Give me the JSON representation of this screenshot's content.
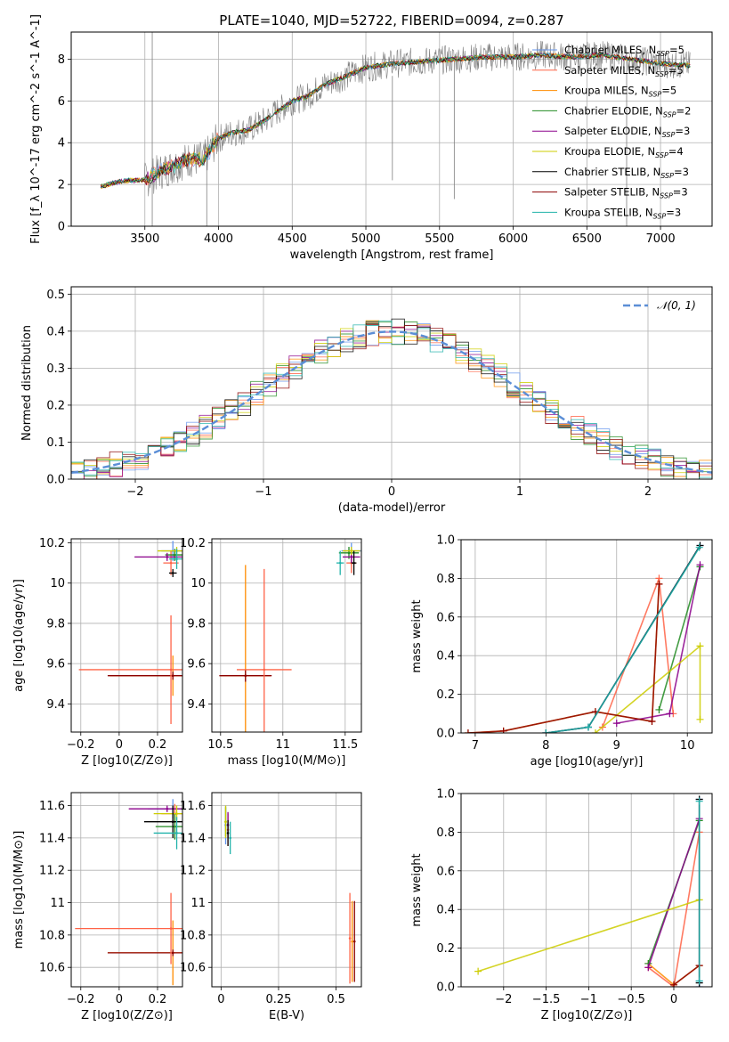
{
  "title": "PLATE=1040, MJD=52722, FIBERID=0094, z=0.287",
  "model_names": [
    {
      "name": "Chabrier MILES",
      "nssp": "5"
    },
    {
      "name": "Salpeter MILES",
      "nssp": "5"
    },
    {
      "name": "Kroupa MILES",
      "nssp": "5"
    },
    {
      "name": "Chabrier ELODIE",
      "nssp": "2"
    },
    {
      "name": "Salpeter ELODIE",
      "nssp": "3"
    },
    {
      "name": "Kroupa ELODIE",
      "nssp": "4"
    },
    {
      "name": "Chabrier STELIB",
      "nssp": "3"
    },
    {
      "name": "Salpeter STELIB",
      "nssp": "3"
    },
    {
      "name": "Kroupa STELIB",
      "nssp": "3"
    }
  ],
  "colors": {
    "models": [
      "#6495ed",
      "#ff6347",
      "#ff8c00",
      "#228b22",
      "#8b008b",
      "#cdcd00",
      "#000000",
      "#8b0000",
      "#20b2aa"
    ],
    "data_spectrum": "#808080",
    "gaussian": "#5b8ed6",
    "grid": "#b0b0b0"
  },
  "chart_data": [
    {
      "id": "spectrum",
      "type": "line",
      "title": "PLATE=1040, MJD=52722, FIBERID=0094, z=0.287",
      "xlabel": "wavelength [Angstrom, rest frame]",
      "ylabel": "Flux [f_λ 10^-17 erg cm^-2 s^-1 A^-1]",
      "xlim": [
        3000,
        7350
      ],
      "ylim": [
        0,
        9.3
      ],
      "xticks": [
        3500,
        4000,
        4500,
        5000,
        5500,
        6000,
        6500,
        7000
      ],
      "yticks": [
        0,
        2,
        4,
        6,
        8
      ],
      "legend_position": "top-right",
      "continuum_x": [
        3200,
        3300,
        3400,
        3500,
        3600,
        3700,
        3800,
        3900,
        4000,
        4100,
        4200,
        4300,
        4400,
        4500,
        4600,
        4700,
        4800,
        4900,
        5000,
        5200,
        5400,
        5600,
        5800,
        6000,
        6200,
        6400,
        6600,
        6800,
        7000,
        7200
      ],
      "continuum_y": [
        1.9,
        2.1,
        2.2,
        2.2,
        2.6,
        2.9,
        3.2,
        3.2,
        4.2,
        4.5,
        4.6,
        5.0,
        5.5,
        6.0,
        6.2,
        6.7,
        7.0,
        7.3,
        7.6,
        7.8,
        7.9,
        8.0,
        8.1,
        8.1,
        8.2,
        8.1,
        8.2,
        8.0,
        7.8,
        7.7
      ]
    },
    {
      "id": "residuals",
      "type": "histogram",
      "xlabel": "(data-model)/error",
      "ylabel": "Normed distribution",
      "xlim": [
        -2.5,
        2.5
      ],
      "ylim": [
        0,
        0.52
      ],
      "xticks": [
        -2,
        -1,
        0,
        1,
        2
      ],
      "yticks": [
        0.0,
        0.1,
        0.2,
        0.3,
        0.4,
        0.5
      ],
      "legend": "𝒩(0, 1)",
      "legend_position": "top-right",
      "bin_width": 0.1
    },
    {
      "id": "age-vs-Z",
      "type": "scatter",
      "xlabel": "Z [log10(Z/Z⊙)]",
      "ylabel": "age [log10(age/yr)]",
      "xlim": [
        -0.25,
        0.33
      ],
      "ylim": [
        9.26,
        10.22
      ],
      "xticks": [
        -0.2,
        0.0,
        0.2
      ],
      "yticks": [
        9.4,
        9.6,
        9.8,
        10.0,
        10.2
      ],
      "points": [
        {
          "model": 0,
          "x": 0.28,
          "y": 10.16,
          "xerr": 0.06,
          "yerr": 0.05
        },
        {
          "model": 1,
          "x": 0.27,
          "y": 10.1,
          "xerr": 0.04,
          "yerr": 0.06
        },
        {
          "model": 2,
          "x": 0.28,
          "y": 9.54,
          "xerr": 0.33,
          "yerr": 0.1
        },
        {
          "model": 3,
          "x": 0.29,
          "y": 10.14,
          "xerr": 0.05,
          "yerr": 0.03
        },
        {
          "model": 4,
          "x": 0.25,
          "y": 10.13,
          "xerr": 0.17,
          "yerr": 0.02
        },
        {
          "model": 5,
          "x": 0.3,
          "y": 10.16,
          "xerr": 0.1,
          "yerr": 0.02
        },
        {
          "model": 6,
          "x": 0.28,
          "y": 10.05,
          "xerr": 0.02,
          "yerr": 0.02
        },
        {
          "model": 7,
          "x": 0.28,
          "y": 9.54,
          "xerr": 0.34,
          "yerr": 0.02
        },
        {
          "model": 8,
          "x": 0.3,
          "y": 10.12,
          "xerr": 0.04,
          "yerr": 0.05
        },
        {
          "model": 1,
          "x": 0.27,
          "y": 9.57,
          "xerr": 0.48,
          "yerr": 0.27
        }
      ]
    },
    {
      "id": "age-vs-mass",
      "type": "scatter",
      "xlabel": "mass [log10(M/M⊙)]",
      "ylabel": "",
      "xlim": [
        10.43,
        11.63
      ],
      "ylim": [
        9.26,
        10.22
      ],
      "xticks": [
        10.5,
        11.0,
        11.5
      ],
      "yticks": [
        9.4,
        9.6,
        9.8,
        10.0,
        10.2
      ],
      "points": [
        {
          "model": 0,
          "x": 11.55,
          "y": 10.16,
          "xerr": 0.08,
          "yerr": 0.04
        },
        {
          "model": 1,
          "x": 11.55,
          "y": 10.1,
          "xerr": 0.04,
          "yerr": 0.05
        },
        {
          "model": 2,
          "x": 10.7,
          "y": 9.54,
          "xerr": 0.2,
          "yerr": 0.55
        },
        {
          "model": 3,
          "x": 11.53,
          "y": 10.15,
          "xerr": 0.08,
          "yerr": 0.03
        },
        {
          "model": 4,
          "x": 11.55,
          "y": 10.13,
          "xerr": 0.07,
          "yerr": 0.03
        },
        {
          "model": 5,
          "x": 11.55,
          "y": 10.16,
          "xerr": 0.07,
          "yerr": 0.02
        },
        {
          "model": 6,
          "x": 11.57,
          "y": 10.1,
          "xerr": 0.02,
          "yerr": 0.06
        },
        {
          "model": 7,
          "x": 10.7,
          "y": 9.54,
          "xerr": 0.21,
          "yerr": 0.03
        },
        {
          "model": 8,
          "x": 11.46,
          "y": 10.1,
          "xerr": 0.03,
          "yerr": 0.06
        },
        {
          "model": 1,
          "x": 10.85,
          "y": 9.57,
          "xerr": 0.22,
          "yerr": 0.5
        }
      ]
    },
    {
      "id": "massweight-vs-age",
      "type": "line",
      "xlabel": "age [log10(age/yr)]",
      "ylabel": "mass weight",
      "xlim": [
        6.8,
        10.35
      ],
      "ylim": [
        0,
        1.0
      ],
      "xticks": [
        7,
        8,
        9,
        10
      ],
      "yticks": [
        0.0,
        0.2,
        0.4,
        0.6,
        0.8,
        1.0
      ],
      "series": [
        {
          "model": 0,
          "x": [
            8.0,
            8.6,
            10.18
          ],
          "y": [
            0.0,
            0.03,
            0.97
          ]
        },
        {
          "model": 1,
          "x": [
            8.8,
            9.6,
            9.8
          ],
          "y": [
            0.03,
            0.8,
            0.1
          ]
        },
        {
          "model": 2,
          "x": [
            6.9,
            7.4,
            8.7,
            9.5,
            9.6
          ],
          "y": [
            0.0,
            0.01,
            0.11,
            0.06,
            0.77
          ]
        },
        {
          "model": 3,
          "x": [
            9.6,
            10.18
          ],
          "y": [
            0.12,
            0.86
          ]
        },
        {
          "model": 4,
          "x": [
            9.0,
            9.75,
            10.18
          ],
          "y": [
            0.05,
            0.1,
            0.87
          ]
        },
        {
          "model": 5,
          "x": [
            8.7,
            10.18,
            10.18
          ],
          "y": [
            0.0,
            0.45,
            0.07
          ]
        },
        {
          "model": 6,
          "x": [
            8.0,
            8.6,
            10.18
          ],
          "y": [
            0.0,
            0.03,
            0.97
          ]
        },
        {
          "model": 7,
          "x": [
            6.9,
            7.4,
            8.7,
            9.5,
            9.6
          ],
          "y": [
            0.0,
            0.01,
            0.11,
            0.06,
            0.77
          ]
        },
        {
          "model": 8,
          "x": [
            8.0,
            8.6,
            10.17
          ],
          "y": [
            0.0,
            0.03,
            0.96
          ]
        }
      ]
    },
    {
      "id": "mass-vs-Z",
      "type": "scatter",
      "xlabel": "Z [log10(Z/Z⊙)]",
      "ylabel": "mass [log10(M/M⊙)]",
      "xlim": [
        -0.25,
        0.33
      ],
      "ylim": [
        10.48,
        11.68
      ],
      "xticks": [
        -0.2,
        0.0,
        0.2
      ],
      "yticks": [
        10.6,
        10.8,
        11.0,
        11.2,
        11.4,
        11.6
      ],
      "points": [
        {
          "model": 0,
          "x": 0.28,
          "y": 11.58,
          "xerr": 0.13,
          "yerr": 0.06
        },
        {
          "model": 1,
          "x": 0.29,
          "y": 11.55,
          "xerr": 0.07,
          "yerr": 0.06
        },
        {
          "model": 2,
          "x": 0.28,
          "y": 10.69,
          "xerr": 0.34,
          "yerr": 0.2
        },
        {
          "model": 3,
          "x": 0.29,
          "y": 11.47,
          "xerr": 0.1,
          "yerr": 0.08
        },
        {
          "model": 4,
          "x": 0.25,
          "y": 11.58,
          "xerr": 0.2,
          "yerr": 0.02
        },
        {
          "model": 5,
          "x": 0.3,
          "y": 11.55,
          "xerr": 0.12,
          "yerr": 0.05
        },
        {
          "model": 6,
          "x": 0.28,
          "y": 11.5,
          "xerr": 0.15,
          "yerr": 0.1
        },
        {
          "model": 7,
          "x": 0.28,
          "y": 10.69,
          "xerr": 0.34,
          "yerr": 0.02
        },
        {
          "model": 8,
          "x": 0.3,
          "y": 11.43,
          "xerr": 0.12,
          "yerr": 0.1
        },
        {
          "model": 1,
          "x": 0.27,
          "y": 10.84,
          "xerr": 0.5,
          "yerr": 0.22
        }
      ]
    },
    {
      "id": "mass-vs-ebv",
      "type": "scatter",
      "xlabel": "E(B-V)",
      "ylabel": "",
      "xlim": [
        -0.04,
        0.61
      ],
      "ylim": [
        10.48,
        11.68
      ],
      "xticks": [
        0.0,
        0.25,
        0.5
      ],
      "yticks": [
        10.6,
        10.8,
        11.0,
        11.2,
        11.4,
        11.6
      ],
      "points": [
        {
          "model": 0,
          "x": 0.02,
          "y": 11.48,
          "xerr": 0.0,
          "yerr": 0.12
        },
        {
          "model": 1,
          "x": 0.03,
          "y": 11.45,
          "xerr": 0.0,
          "yerr": 0.1
        },
        {
          "model": 2,
          "x": 0.57,
          "y": 10.76,
          "xerr": 0.0,
          "yerr": 0.25
        },
        {
          "model": 3,
          "x": 0.02,
          "y": 11.5,
          "xerr": 0.0,
          "yerr": 0.09
        },
        {
          "model": 4,
          "x": 0.03,
          "y": 11.48,
          "xerr": 0.0,
          "yerr": 0.08
        },
        {
          "model": 5,
          "x": 0.02,
          "y": 11.5,
          "xerr": 0.0,
          "yerr": 0.1
        },
        {
          "model": 6,
          "x": 0.03,
          "y": 11.43,
          "xerr": 0.0,
          "yerr": 0.08
        },
        {
          "model": 7,
          "x": 0.58,
          "y": 10.76,
          "xerr": 0.0,
          "yerr": 0.25
        },
        {
          "model": 8,
          "x": 0.04,
          "y": 11.4,
          "xerr": 0.0,
          "yerr": 0.1
        },
        {
          "model": 1,
          "x": 0.56,
          "y": 10.78,
          "xerr": 0.0,
          "yerr": 0.28
        }
      ]
    },
    {
      "id": "massweight-vs-Z",
      "type": "line",
      "xlabel": "Z [log10(Z/Z⊙)]",
      "ylabel": "mass weight",
      "xlim": [
        -2.5,
        0.45
      ],
      "ylim": [
        0,
        1.0
      ],
      "xticks": [
        -2.0,
        -1.5,
        -1.0,
        -0.5,
        0.0
      ],
      "yticks": [
        0.0,
        0.2,
        0.4,
        0.6,
        0.8,
        1.0
      ],
      "series": [
        {
          "model": 0,
          "x": [
            0.3,
            0.3,
            0.3
          ],
          "y": [
            0.0,
            0.03,
            0.97
          ]
        },
        {
          "model": 1,
          "x": [
            -0.3,
            0.0,
            0.3
          ],
          "y": [
            0.1,
            0.0,
            0.8
          ]
        },
        {
          "model": 2,
          "x": [
            -0.3,
            0.0,
            0.3
          ],
          "y": [
            0.12,
            0.01,
            0.11
          ]
        },
        {
          "model": 3,
          "x": [
            -0.3,
            0.3
          ],
          "y": [
            0.12,
            0.86
          ]
        },
        {
          "model": 4,
          "x": [
            -0.3,
            0.3
          ],
          "y": [
            0.1,
            0.87
          ]
        },
        {
          "model": 5,
          "x": [
            -2.3,
            0.3
          ],
          "y": [
            0.08,
            0.45
          ]
        },
        {
          "model": 6,
          "x": [
            0.3,
            0.3
          ],
          "y": [
            0.02,
            0.97
          ]
        },
        {
          "model": 7,
          "x": [
            0.0,
            0.3
          ],
          "y": [
            0.01,
            0.11
          ]
        },
        {
          "model": 8,
          "x": [
            0.3,
            0.3
          ],
          "y": [
            0.03,
            0.96
          ]
        }
      ]
    }
  ]
}
